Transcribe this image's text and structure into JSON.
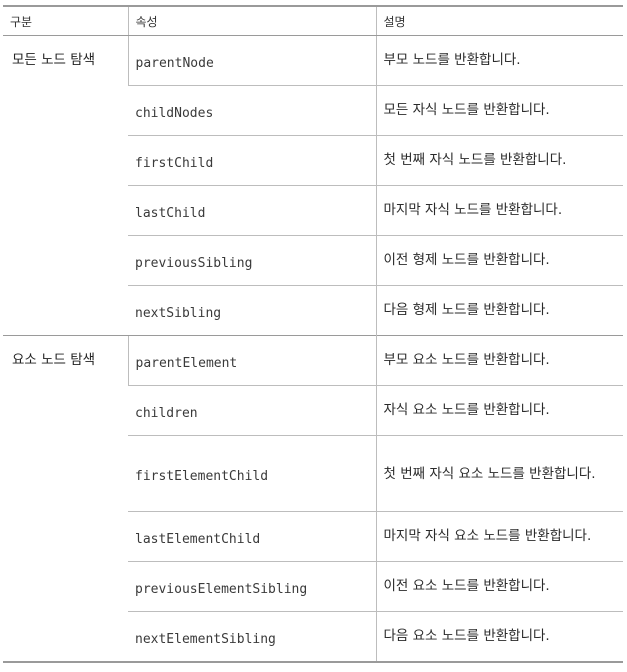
{
  "headers": {
    "category": "구분",
    "property": "속성",
    "description": "설명"
  },
  "groups": [
    {
      "label": "모든 노드 탐색",
      "rows": [
        {
          "property": "parentNode",
          "description": "부모 노드를 반환합니다."
        },
        {
          "property": "childNodes",
          "description": "모든 자식 노드를 반환합니다."
        },
        {
          "property": "firstChild",
          "description": "첫 번째 자식 노드를 반환합니다."
        },
        {
          "property": "lastChild",
          "description": "마지막 자식 노드를 반환합니다."
        },
        {
          "property": "previousSibling",
          "description": "이전 형제 노드를 반환합니다."
        },
        {
          "property": "nextSibling",
          "description": "다음 형제 노드를 반환합니다."
        }
      ]
    },
    {
      "label": "요소 노드 탐색",
      "rows": [
        {
          "property": "parentElement",
          "description": "부모 요소 노드를 반환합니다."
        },
        {
          "property": "children",
          "description": "자식 요소 노드를 반환합니다."
        },
        {
          "property": "firstElementChild",
          "description": "첫 번째 자식 요소 노드를 반환합니다."
        },
        {
          "property": "lastElementChild",
          "description": "마지막 자식 요소 노드를 반환합니다."
        },
        {
          "property": "previousElementSibling",
          "description": "이전 요소 노드를 반환합니다."
        },
        {
          "property": "nextElementSibling",
          "description": "다음 요소 노드를 반환합니다."
        }
      ]
    }
  ]
}
